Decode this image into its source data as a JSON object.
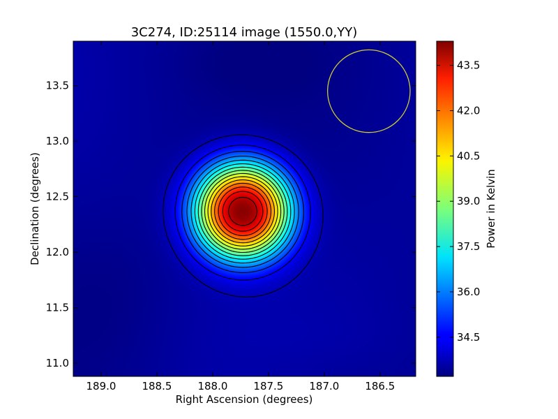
{
  "chart_data": {
    "type": "heatmap",
    "title": "3C274, ID:25114 image (1550.0,YY)",
    "xlabel": "Right Ascension (degrees)",
    "ylabel": "Declination (degrees)",
    "xlim": [
      189.25,
      186.18
    ],
    "ylim": [
      10.88,
      13.9
    ],
    "x_ticks": [
      "189.0",
      "188.5",
      "188.0",
      "187.5",
      "187.0",
      "186.5"
    ],
    "y_ticks": [
      "11.0",
      "11.5",
      "12.0",
      "12.5",
      "13.0",
      "13.5"
    ],
    "colorbar": {
      "label": "Power in Kelvin",
      "range": [
        33.2,
        44.3
      ],
      "ticks": [
        "34.5",
        "36.0",
        "37.5",
        "39.0",
        "40.5",
        "42.0",
        "43.5"
      ],
      "colormap": "jet"
    },
    "peak": {
      "ra": 187.73,
      "dec": 12.37,
      "value": 44.2
    },
    "background_level": 33.5,
    "beam_circle": {
      "ra": 186.6,
      "dec": 13.45,
      "radius_deg": 0.37,
      "color": "#cccc33"
    },
    "contour_levels": [
      33.8,
      34.5,
      35.2,
      35.9,
      36.6,
      37.3,
      38.0,
      38.7,
      39.4,
      40.1,
      40.8,
      41.5,
      42.2,
      42.9,
      43.6
    ],
    "grid": false
  }
}
